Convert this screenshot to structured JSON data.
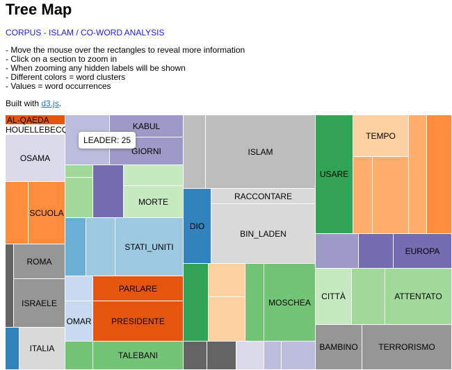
{
  "page": {
    "title": "Tree Map",
    "subtitle": "CORPUS - ISLAM / CO-WORD ANALYSIS",
    "instructions": [
      "- Move the mouse over the rectangles to reveal more information",
      "- Click on a section to zoom in",
      "- When zooming any hidden labels will be shown",
      "- Different colors = word clusters",
      "- Values = word occurrences"
    ],
    "built_prefix": "Built with ",
    "built_link": "d3.js",
    "built_suffix": "."
  },
  "tooltip": {
    "text": "LEADER: 25"
  },
  "chart_data": {
    "type": "treemap",
    "title": "Tree Map",
    "value_meaning": "word occurrences",
    "color_meaning": "word clusters",
    "labels": [
      "AL-QAEDA",
      "HOUELLEBECQ",
      "OSAMA",
      "SCUOLA",
      "ROMA",
      "ISRAELE",
      "ITALIA",
      "KABUL",
      "GIORNI",
      "MORTE",
      "STATI_UNITI",
      "PARLARE",
      "OMAR",
      "PRESIDENTE",
      "TALEBANI",
      "ISLAM",
      "RACCONTARE",
      "DIO",
      "BIN_LADEN",
      "MOSCHEA",
      "USARE",
      "TEMPO",
      "EUROPA",
      "CITTÀ",
      "ATTENTATO",
      "BAMBINO",
      "TERRORISMO"
    ],
    "tooltip_sample": {
      "label": "LEADER",
      "value": 25
    }
  }
}
